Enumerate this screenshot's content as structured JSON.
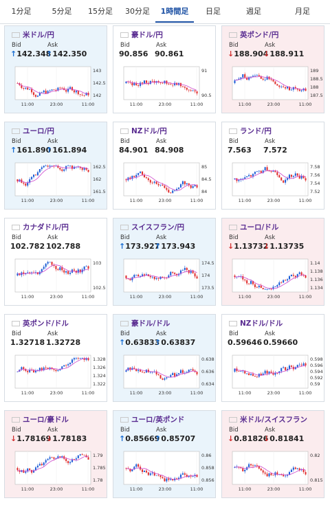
{
  "tabs": [
    "1分足",
    "5分足",
    "15分足",
    "30分足",
    "1時間足",
    "日足",
    "週足",
    "月足"
  ],
  "active_tab": 4,
  "labels": {
    "bid": "Bid",
    "ask": "Ask"
  },
  "colors": {
    "up_bg": "#eaf4fb",
    "down_bg": "#fbecee",
    "pair_text": "#5a2d91",
    "candle_up": "#1f5fd6",
    "candle_down": "#e03030",
    "ma_line": "#cc44cc",
    "accent": "#1a4fa3"
  },
  "cards": [
    {
      "pair": "米ドル/円",
      "flag": "us",
      "direction": "up",
      "bid": "142.348",
      "ask": "142.350",
      "bid_arrow": "up",
      "ask_arrow": "up",
      "y_ticks": [
        "143",
        "142.5",
        "142"
      ],
      "x_ticks": [
        "11:00",
        "23:00",
        "11:00"
      ]
    },
    {
      "pair": "豪ドル/円",
      "flag": "au",
      "direction": "none",
      "bid": "90.856",
      "ask": "90.861",
      "bid_arrow": "",
      "ask_arrow": "",
      "y_ticks": [
        "91",
        "90.5"
      ],
      "x_ticks": [
        "11:00",
        "23:00",
        "11:00"
      ]
    },
    {
      "pair": "英ポンド/円",
      "flag": "gb",
      "direction": "down",
      "bid": "188.904",
      "ask": "188.911",
      "bid_arrow": "down",
      "ask_arrow": "down",
      "y_ticks": [
        "189",
        "188.5",
        "188",
        "187.5"
      ],
      "x_ticks": [
        "11:00",
        "23:00",
        "11:00"
      ]
    },
    {
      "pair": "ユーロ/円",
      "flag": "eu",
      "direction": "up",
      "bid": "161.890",
      "ask": "161.894",
      "bid_arrow": "up",
      "ask_arrow": "up",
      "y_ticks": [
        "162.5",
        "162",
        "161.5"
      ],
      "x_ticks": [
        "11:00",
        "23:00",
        "11:00"
      ]
    },
    {
      "pair": "NZドル/円",
      "flag": "nz",
      "direction": "none",
      "bid": "84.901",
      "ask": "84.908",
      "bid_arrow": "",
      "ask_arrow": "",
      "y_ticks": [
        "85",
        "84.5",
        "84"
      ],
      "x_ticks": [
        "11:00",
        "23:00",
        "11:00"
      ]
    },
    {
      "pair": "ランド/円",
      "flag": "za",
      "direction": "none",
      "bid": "7.563",
      "ask": "7.572",
      "bid_arrow": "",
      "ask_arrow": "",
      "y_ticks": [
        "7.58",
        "7.56",
        "7.54",
        "7.52"
      ],
      "x_ticks": [
        "11:00",
        "23:00",
        "11:00"
      ]
    },
    {
      "pair": "カナダドル/円",
      "flag": "ca",
      "direction": "none",
      "bid": "102.782",
      "ask": "102.788",
      "bid_arrow": "",
      "ask_arrow": "",
      "y_ticks": [
        "103",
        "102.5"
      ],
      "x_ticks": [
        "11:00",
        "23:00",
        "11:00"
      ]
    },
    {
      "pair": "スイスフラン/円",
      "flag": "ch",
      "direction": "up",
      "bid": "173.927",
      "ask": "173.943",
      "bid_arrow": "up",
      "ask_arrow": "up",
      "y_ticks": [
        "174.5",
        "174",
        "173.5"
      ],
      "x_ticks": [
        "11:00",
        "23:00",
        "11:00"
      ]
    },
    {
      "pair": "ユーロ/ドル",
      "flag": "eu",
      "direction": "down",
      "bid": "1.13732",
      "ask": "1.13735",
      "bid_arrow": "down",
      "ask_arrow": "down",
      "y_ticks": [
        "1.14",
        "1.138",
        "1.136",
        "1.134"
      ],
      "x_ticks": [
        "11:00",
        "23:00",
        "11:00"
      ]
    },
    {
      "pair": "英ポンド/ドル",
      "flag": "gb",
      "direction": "none",
      "bid": "1.32718",
      "ask": "1.32728",
      "bid_arrow": "",
      "ask_arrow": "",
      "y_ticks": [
        "1.328",
        "1.326",
        "1.324",
        "1.322"
      ],
      "x_ticks": [
        "11:00",
        "23:00",
        "11:00"
      ]
    },
    {
      "pair": "豪ドル/ドル",
      "flag": "au",
      "direction": "up",
      "bid": "0.63833",
      "ask": "0.63837",
      "bid_arrow": "up",
      "ask_arrow": "up",
      "y_ticks": [
        "0.638",
        "0.636",
        "0.634"
      ],
      "x_ticks": [
        "11:00",
        "23:00",
        "11:00"
      ]
    },
    {
      "pair": "NZドル/ドル",
      "flag": "nz",
      "direction": "none",
      "bid": "0.59646",
      "ask": "0.59660",
      "bid_arrow": "",
      "ask_arrow": "",
      "y_ticks": [
        "0.598",
        "0.596",
        "0.594",
        "0.592",
        "0.59"
      ],
      "x_ticks": [
        "11:00",
        "23:00",
        "11:00"
      ]
    },
    {
      "pair": "ユーロ/豪ドル",
      "flag": "eu",
      "direction": "down",
      "bid": "1.78169",
      "ask": "1.78183",
      "bid_arrow": "down",
      "ask_arrow": "down",
      "y_ticks": [
        "1.79",
        "1.785",
        "1.78"
      ],
      "x_ticks": [
        "11:00",
        "23:00",
        "11:00"
      ]
    },
    {
      "pair": "ユーロ/英ポンド",
      "flag": "eu",
      "direction": "up",
      "bid": "0.85669",
      "ask": "0.85707",
      "bid_arrow": "up",
      "ask_arrow": "up",
      "y_ticks": [
        "0.86",
        "0.858",
        "0.856"
      ],
      "x_ticks": [
        "11:00",
        "23:00",
        "11:00"
      ]
    },
    {
      "pair": "米ドル/スイスフラン",
      "flag": "us",
      "direction": "down",
      "bid": "0.81826",
      "ask": "0.81841",
      "bid_arrow": "down",
      "ask_arrow": "down",
      "y_ticks": [
        "0.82",
        "0.815"
      ],
      "x_ticks": [
        "11:00",
        "23:00",
        "11:00"
      ]
    }
  ]
}
